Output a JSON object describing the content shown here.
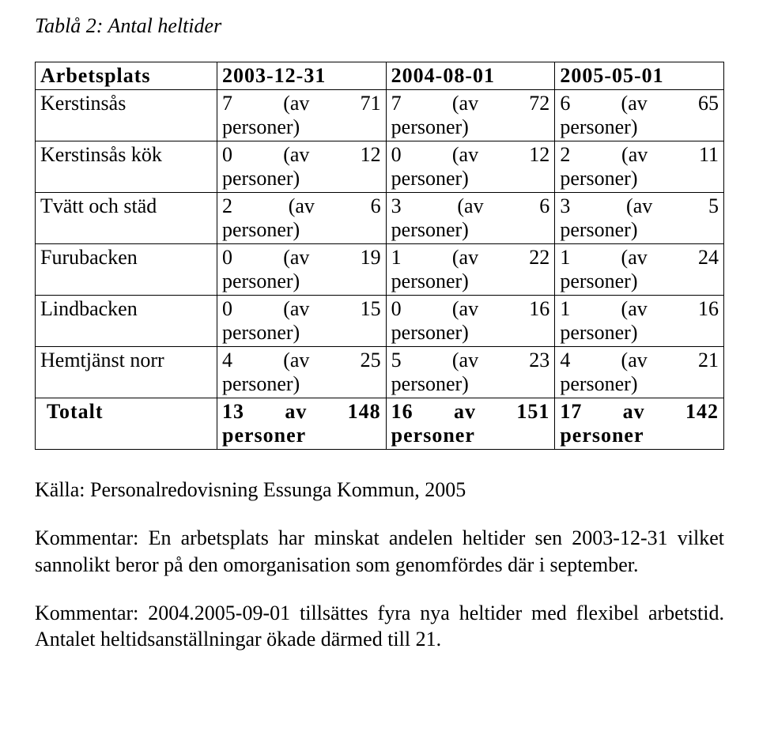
{
  "title": "Tablå 2: Antal heltider",
  "table": {
    "headers": [
      "Arbetsplats",
      "2003-12-31",
      "2004-08-01",
      "2005-05-01"
    ],
    "rows": [
      {
        "label": "Kerstinsås",
        "cells": [
          {
            "l1a": "7",
            "l1b": "(av",
            "l1c": "71",
            "l2": "personer)"
          },
          {
            "l1a": "7",
            "l1b": "(av",
            "l1c": "72",
            "l2": "personer)"
          },
          {
            "l1a": "6",
            "l1b": "(av",
            "l1c": "65",
            "l2": "personer)"
          }
        ]
      },
      {
        "label": "Kerstinsås kök",
        "cells": [
          {
            "l1a": "0",
            "l1b": "(av",
            "l1c": "12",
            "l2": "personer)"
          },
          {
            "l1a": "0",
            "l1b": "(av",
            "l1c": "12",
            "l2": "personer)"
          },
          {
            "l1a": "2",
            "l1b": "(av",
            "l1c": "11",
            "l2": "personer)"
          }
        ]
      },
      {
        "label": "Tvätt och städ",
        "cells": [
          {
            "l1a": "2",
            "l1b": "(av",
            "l1c": "6",
            "l2": "personer)"
          },
          {
            "l1a": "3",
            "l1b": "(av",
            "l1c": "6",
            "l2": "personer)"
          },
          {
            "l1a": "3",
            "l1b": "(av",
            "l1c": "5",
            "l2": "personer)"
          }
        ]
      },
      {
        "label": "Furubacken",
        "cells": [
          {
            "l1a": "0",
            "l1b": "(av",
            "l1c": "19",
            "l2": "personer)"
          },
          {
            "l1a": "1",
            "l1b": "(av",
            "l1c": "22",
            "l2": "personer)"
          },
          {
            "l1a": "1",
            "l1b": "(av",
            "l1c": "24",
            "l2": "personer)"
          }
        ]
      },
      {
        "label": "Lindbacken",
        "cells": [
          {
            "l1a": "0",
            "l1b": "(av",
            "l1c": "15",
            "l2": "personer)"
          },
          {
            "l1a": "0",
            "l1b": "(av",
            "l1c": "16",
            "l2": "personer)"
          },
          {
            "l1a": "1",
            "l1b": "(av",
            "l1c": "16",
            "l2": "personer)"
          }
        ]
      },
      {
        "label": "Hemtjänst norr",
        "cells": [
          {
            "l1a": "4",
            "l1b": "(av",
            "l1c": "25",
            "l2": "personer)"
          },
          {
            "l1a": "5",
            "l1b": "(av",
            "l1c": "23",
            "l2": "personer)"
          },
          {
            "l1a": "4",
            "l1b": "(av",
            "l1c": "21",
            "l2": "personer)"
          }
        ]
      }
    ],
    "total": {
      "label": "Totalt",
      "cells": [
        {
          "l1a": "13",
          "l1b": "av",
          "l1c": "148",
          "l2": "personer"
        },
        {
          "l1a": "16",
          "l1b": "av",
          "l1c": "151",
          "l2": "personer"
        },
        {
          "l1a": "17",
          "l1b": "av",
          "l1c": "142",
          "l2": "personer"
        }
      ]
    }
  },
  "paragraphs": {
    "source": "Källa: Personalredovisning Essunga Kommun, 2005",
    "comment1": "Kommentar: En arbetsplats har minskat andelen heltider sen 2003-12-31 vilket sannolikt beror på den omorganisation som genomfördes där i september.",
    "comment2": "Kommentar: 2004.2005-09-01 tillsättes fyra nya heltider med flexibel arbetstid. Antalet heltidsanställningar ökade därmed till 21."
  }
}
